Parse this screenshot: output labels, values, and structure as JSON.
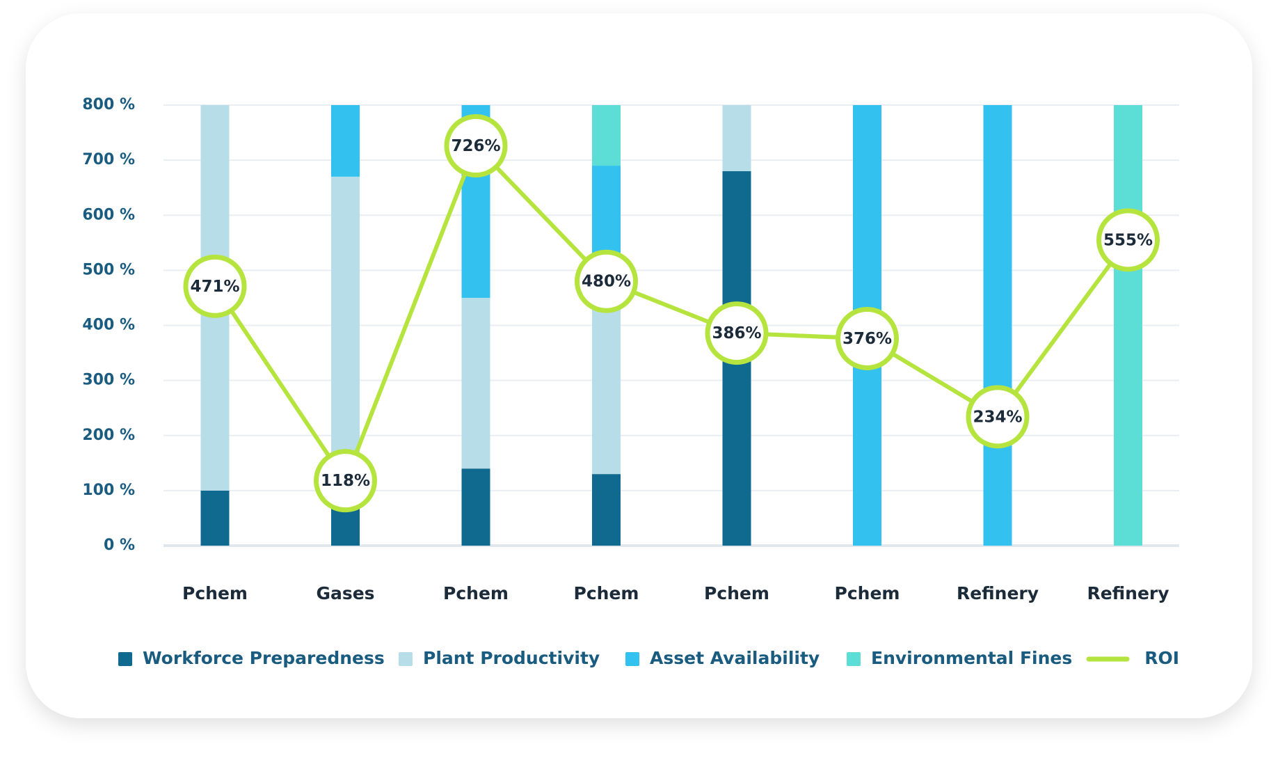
{
  "chart_data": {
    "type": "stacked-bar-line",
    "categories": [
      "Pchem",
      "Gases",
      "Pchem",
      "Pchem",
      "Pchem",
      "Pchem",
      "Refinery",
      "Refinery"
    ],
    "series": [
      {
        "name": "Workforce Preparedness",
        "color": "#10698f",
        "values": [
          100,
          100,
          140,
          130,
          680,
          0,
          0,
          0
        ]
      },
      {
        "name": "Plant Productivity",
        "color": "#b7dde8",
        "values": [
          700,
          570,
          310,
          370,
          120,
          0,
          0,
          0
        ]
      },
      {
        "name": "Asset Availability",
        "color": "#33c1ef",
        "values": [
          0,
          130,
          350,
          190,
          0,
          800,
          800,
          0
        ]
      },
      {
        "name": "Environmental Fines",
        "color": "#5cddd6",
        "values": [
          0,
          0,
          0,
          110,
          0,
          0,
          0,
          800
        ]
      },
      {
        "name": "ROI",
        "color": "#b6e43e",
        "type": "line",
        "values": [
          471,
          118,
          726,
          480,
          386,
          376,
          234,
          555
        ],
        "value_labels": [
          "471%",
          "118%",
          "726%",
          "480%",
          "386%",
          "376%",
          "234%",
          "555%"
        ]
      }
    ],
    "ylim": [
      0,
      800
    ],
    "yticks": [
      {
        "value": 0,
        "label": "0 %"
      },
      {
        "value": 100,
        "label": "100 %"
      },
      {
        "value": 200,
        "label": "200 %"
      },
      {
        "value": 300,
        "label": "300 %"
      },
      {
        "value": 400,
        "label": "400 %"
      },
      {
        "value": 500,
        "label": "500 %"
      },
      {
        "value": 600,
        "label": "600 %"
      },
      {
        "value": 700,
        "label": "700 %"
      },
      {
        "value": 800,
        "label": "800 %"
      }
    ],
    "grid": true,
    "legend": "bottom"
  }
}
